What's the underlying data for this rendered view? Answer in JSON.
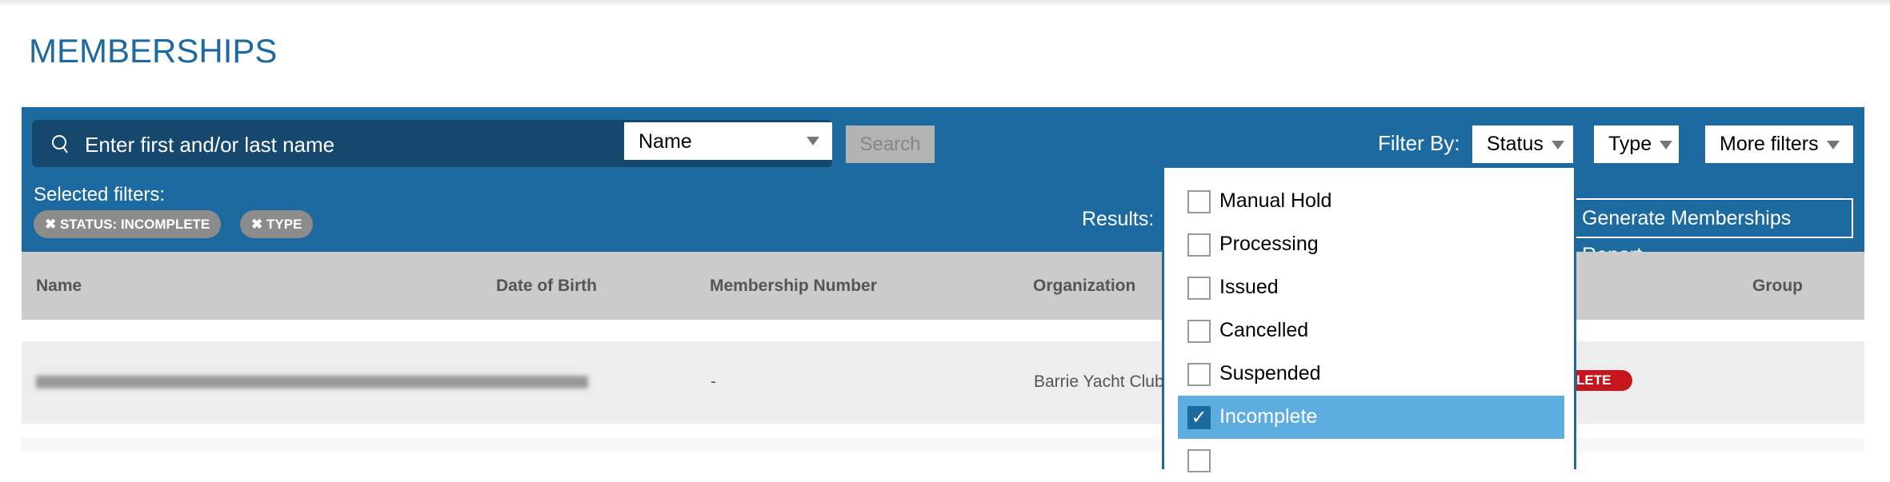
{
  "page": {
    "title": "MEMBERSHIPS"
  },
  "search": {
    "placeholder": "Enter first and/or last name",
    "field_select": "Name",
    "button": "Search"
  },
  "filters": {
    "selected_label": "Selected filters:",
    "chips": [
      "STATUS: INCOMPLETE",
      "TYPE"
    ],
    "filter_by": "Filter By:",
    "status": "Status",
    "type": "Type",
    "more": "More filters"
  },
  "results_label": "Results:",
  "report_button": "Generate Memberships Report",
  "table": {
    "columns": [
      "Name",
      "Date of Birth",
      "Membership Number",
      "Organization",
      "Group"
    ],
    "rows": [
      {
        "membership_number": "-",
        "organization": "Barrie Yacht Club",
        "status_badge": "LETE"
      }
    ]
  },
  "status_dropdown": {
    "options": [
      {
        "label": "Manual Hold",
        "checked": false
      },
      {
        "label": "Processing",
        "checked": false
      },
      {
        "label": "Issued",
        "checked": false
      },
      {
        "label": "Cancelled",
        "checked": false
      },
      {
        "label": "Suspended",
        "checked": false
      },
      {
        "label": "Incomplete",
        "checked": true
      }
    ]
  },
  "colors": {
    "primary": "#1d6aa1",
    "search_bg": "#16486d",
    "highlight": "#5dade0",
    "badge": "#c4161c"
  }
}
